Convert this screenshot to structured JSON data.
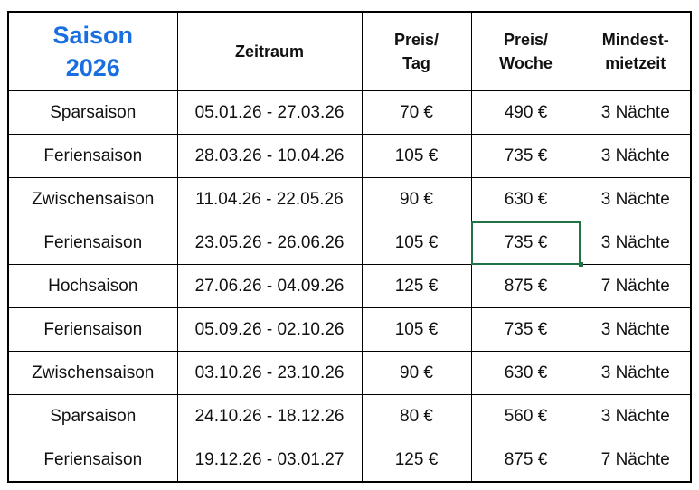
{
  "header": {
    "saison_line1": "Saison",
    "saison_line2": "2026",
    "zeitraum": "Zeitraum",
    "preis_tag_1": "Preis/",
    "preis_tag_2": "Tag",
    "preis_woche_1": "Preis/",
    "preis_woche_2": "Woche",
    "mindest_1": "Mindest-",
    "mindest_2": "mietzeit"
  },
  "rows": [
    {
      "saison": "Sparsaison",
      "zeitraum": "05.01.26 - 27.03.26",
      "tag": "70 €",
      "woche": "490 €",
      "min": "3 Nächte"
    },
    {
      "saison": "Feriensaison",
      "zeitraum": "28.03.26 - 10.04.26",
      "tag": "105 €",
      "woche": "735 €",
      "min": "3 Nächte"
    },
    {
      "saison": "Zwischensaison",
      "zeitraum": "11.04.26 - 22.05.26",
      "tag": "90 €",
      "woche": "630 €",
      "min": "3 Nächte"
    },
    {
      "saison": "Feriensaison",
      "zeitraum": "23.05.26 - 26.06.26",
      "tag": "105 €",
      "woche": "735 €",
      "min": "3 Nächte"
    },
    {
      "saison": "Hochsaison",
      "zeitraum": "27.06.26 - 04.09.26",
      "tag": "125 €",
      "woche": "875 €",
      "min": "7 Nächte"
    },
    {
      "saison": "Feriensaison",
      "zeitraum": "05.09.26 - 02.10.26",
      "tag": "105 €",
      "woche": "735 €",
      "min": "3 Nächte"
    },
    {
      "saison": "Zwischensaison",
      "zeitraum": "03.10.26 - 23.10.26",
      "tag": "90 €",
      "woche": "630 €",
      "min": "3 Nächte"
    },
    {
      "saison": "Sparsaison",
      "zeitraum": "24.10.26 - 18.12.26",
      "tag": "80 €",
      "woche": "560 €",
      "min": "3 Nächte"
    },
    {
      "saison": "Feriensaison",
      "zeitraum": "19.12.26 - 03.01.27",
      "tag": "125 €",
      "woche": "875 €",
      "min": "7 Nächte"
    }
  ],
  "selected_cell": {
    "row": 3,
    "column": "woche"
  },
  "colors": {
    "title": "#1a6fe0",
    "selection": "#217346"
  }
}
